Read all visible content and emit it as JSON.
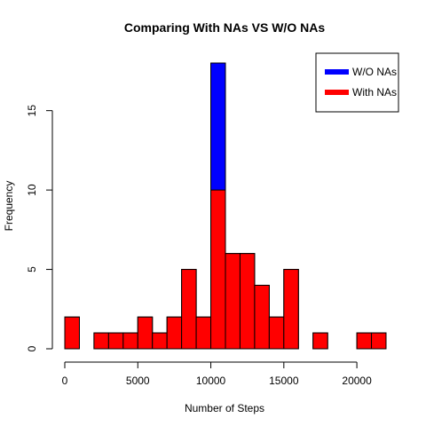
{
  "chart_data": {
    "type": "bar",
    "title": "Comparing With NAs VS W/O NAs",
    "xlabel": "Number of Steps",
    "ylabel": "Frequency",
    "xlim": [
      0,
      22000
    ],
    "ylim": [
      0,
      18
    ],
    "bin_width": 1000,
    "x_ticks": [
      0,
      5000,
      10000,
      15000,
      20000
    ],
    "y_ticks": [
      0,
      5,
      10,
      15
    ],
    "grid": false,
    "legend_position": "top-right",
    "bin_starts": [
      0,
      1000,
      2000,
      3000,
      4000,
      5000,
      6000,
      7000,
      8000,
      9000,
      10000,
      11000,
      12000,
      13000,
      14000,
      15000,
      16000,
      17000,
      18000,
      19000,
      20000,
      21000
    ],
    "series": [
      {
        "name": "W/O NAs",
        "color": "#0000ff",
        "values": [
          2,
          0,
          1,
          1,
          1,
          2,
          1,
          2,
          5,
          2,
          18,
          6,
          6,
          4,
          2,
          5,
          0,
          1,
          0,
          0,
          1,
          1
        ]
      },
      {
        "name": "With NAs",
        "color": "#ff0000",
        "values": [
          2,
          0,
          1,
          1,
          1,
          2,
          1,
          2,
          5,
          2,
          10,
          6,
          6,
          4,
          2,
          5,
          0,
          1,
          0,
          0,
          1,
          1
        ]
      }
    ]
  }
}
